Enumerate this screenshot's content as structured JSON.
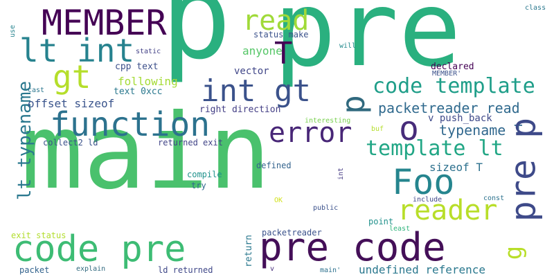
{
  "words": [
    {
      "text": "p",
      "color": "#2ab07f",
      "rotated": false
    },
    {
      "text": "pre",
      "color": "#2ab07f",
      "rotated": false
    },
    {
      "text": "main",
      "color": "#4ac16d",
      "rotated": false
    },
    {
      "text": "code pre",
      "color": "#3dbc74",
      "rotated": false
    },
    {
      "text": "pre code",
      "color": "#440f58",
      "rotated": false
    },
    {
      "text": "MEMBER",
      "color": "#440154",
      "rotated": false
    },
    {
      "text": "read",
      "color": "#a0da39",
      "rotated": false
    },
    {
      "text": "T",
      "color": "#440154",
      "rotated": false
    },
    {
      "text": "lt int",
      "color": "#26828e",
      "rotated": false
    },
    {
      "text": "gt",
      "color": "#b5de2b",
      "rotated": false
    },
    {
      "text": "int gt",
      "color": "#3b528b",
      "rotated": false
    },
    {
      "text": "function",
      "color": "#2c728e",
      "rotated": false
    },
    {
      "text": "error",
      "color": "#482677",
      "rotated": false
    },
    {
      "text": "o",
      "color": "#472c7a",
      "rotated": false
    },
    {
      "text": "p",
      "color": "#30697e",
      "rotated": true
    },
    {
      "text": "code template",
      "color": "#1f9e89",
      "rotated": false
    },
    {
      "text": "packetreader read",
      "color": "#306a8e",
      "rotated": false
    },
    {
      "text": "typename T",
      "color": "#31688e",
      "rotated": false
    },
    {
      "text": "template lt",
      "color": "#21a685",
      "rotated": false
    },
    {
      "text": "Foo",
      "color": "#25858e",
      "rotated": false
    },
    {
      "text": "reader",
      "color": "#b8de29",
      "rotated": false
    },
    {
      "text": "pre p",
      "color": "#3e4a89",
      "rotated": true
    },
    {
      "text": "g",
      "color": "#b8de29",
      "rotated": true
    },
    {
      "text": "lt typename",
      "color": "#2a788e",
      "rotated": true
    },
    {
      "text": "sizeof T",
      "color": "#2d718e",
      "rotated": false
    },
    {
      "text": "v push_back",
      "color": "#3e4989",
      "rotated": false
    },
    {
      "text": "offset sizeof",
      "color": "#3a548c",
      "rotated": false
    },
    {
      "text": "following",
      "color": "#a5db36",
      "rotated": false
    },
    {
      "text": "anyone",
      "color": "#55c667",
      "rotated": false
    },
    {
      "text": "vector",
      "color": "#404688",
      "rotated": false
    },
    {
      "text": "cpp text",
      "color": "#3c4f8a",
      "rotated": false
    },
    {
      "text": "text 0xcc",
      "color": "#2a788e",
      "rotated": false
    },
    {
      "text": "right direction",
      "color": "#433e85",
      "rotated": false
    },
    {
      "text": "collect2 ld",
      "color": "#3b528b",
      "rotated": false
    },
    {
      "text": "returned exit",
      "color": "#414487",
      "rotated": false
    },
    {
      "text": "status make",
      "color": "#3b528b",
      "rotated": false
    },
    {
      "text": "declared",
      "color": "#440154",
      "rotated": false
    },
    {
      "text": "MEMBER'",
      "color": "#3b518b",
      "rotated": false
    },
    {
      "text": "static",
      "color": "#424086",
      "rotated": false
    },
    {
      "text": "will",
      "color": "#238a8d",
      "rotated": false
    },
    {
      "text": "use",
      "color": "#25838e",
      "rotated": true
    },
    {
      "text": "cast",
      "color": "#2a768e",
      "rotated": false
    },
    {
      "text": "class",
      "color": "#2a788e",
      "rotated": false
    },
    {
      "text": "interesting",
      "color": "#7ad151",
      "rotated": false
    },
    {
      "text": "buf",
      "color": "#b5de2b",
      "rotated": false
    },
    {
      "text": "compile",
      "color": "#20928c",
      "rotated": false
    },
    {
      "text": "try",
      "color": "#31688e",
      "rotated": false
    },
    {
      "text": "defined",
      "color": "#33638d",
      "rotated": false
    },
    {
      "text": "int",
      "color": "#443983",
      "rotated": true
    },
    {
      "text": "include",
      "color": "#3f4788",
      "rotated": false
    },
    {
      "text": "const",
      "color": "#2c728e",
      "rotated": false
    },
    {
      "text": "OK",
      "color": "#d2e21b",
      "rotated": false
    },
    {
      "text": "public",
      "color": "#3b518b",
      "rotated": false
    },
    {
      "text": "point",
      "color": "#21918c",
      "rotated": false
    },
    {
      "text": "least",
      "color": "#2fb47c",
      "rotated": false
    },
    {
      "text": "packetreader",
      "color": "#3b528b",
      "rotated": false
    },
    {
      "text": "exit status",
      "color": "#b2dd2d",
      "rotated": false
    },
    {
      "text": "return",
      "color": "#2a788e",
      "rotated": true
    },
    {
      "text": "packet",
      "color": "#33638d",
      "rotated": false
    },
    {
      "text": "explain",
      "color": "#30697e",
      "rotated": false
    },
    {
      "text": "ld returned",
      "color": "#3f4788",
      "rotated": false
    },
    {
      "text": "v",
      "color": "#472d7b",
      "rotated": false
    },
    {
      "text": "main'",
      "color": "#2d718e",
      "rotated": false
    },
    {
      "text": "undefined reference",
      "color": "#2a788e",
      "rotated": false
    }
  ]
}
